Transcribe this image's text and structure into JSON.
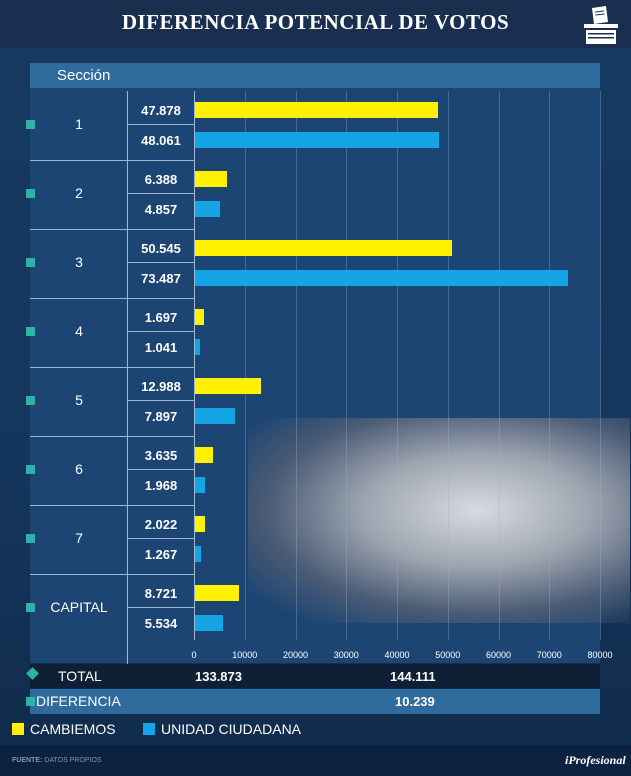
{
  "title": "DIFERENCIA POTENCIAL DE VOTOS",
  "header": {
    "seccion_label": "Sección"
  },
  "colors": {
    "cambiemos": "#fff200",
    "unidad": "#14a5e6",
    "accent": "#2fb3a8"
  },
  "chart_data": {
    "type": "bar",
    "orientation": "horizontal",
    "categories": [
      "1",
      "2",
      "3",
      "4",
      "5",
      "6",
      "7",
      "CAPITAL"
    ],
    "series": [
      {
        "name": "CAMBIEMOS",
        "values": [
          47878,
          6388,
          50545,
          1697,
          12988,
          3635,
          2022,
          8721
        ],
        "labels": [
          "47.878",
          "6.388",
          "50.545",
          "1.697",
          "12.988",
          "3.635",
          "2.022",
          "8.721"
        ]
      },
      {
        "name": "UNIDAD CIUDADANA",
        "values": [
          48061,
          4857,
          73487,
          1041,
          7897,
          1968,
          1267,
          5534
        ],
        "labels": [
          "48.061",
          "4.857",
          "73.487",
          "1.041",
          "7.897",
          "1.968",
          "1.267",
          "5.534"
        ]
      }
    ],
    "xlim": [
      0,
      80000
    ],
    "xticks": [
      "0",
      "10000",
      "20000",
      "30000",
      "40000",
      "50000",
      "60000",
      "70000",
      "80000"
    ],
    "grid": true,
    "legend_position": "bottom"
  },
  "total": {
    "label": "TOTAL",
    "cambiemos": "133.873",
    "unidad": "144.111"
  },
  "diferencia": {
    "label": "DIFERENCIA",
    "value": "10.239"
  },
  "footer": {
    "source_label": "FUENTE:",
    "source_value": "DATOS PROPIOS",
    "brand": "iProfesional"
  }
}
